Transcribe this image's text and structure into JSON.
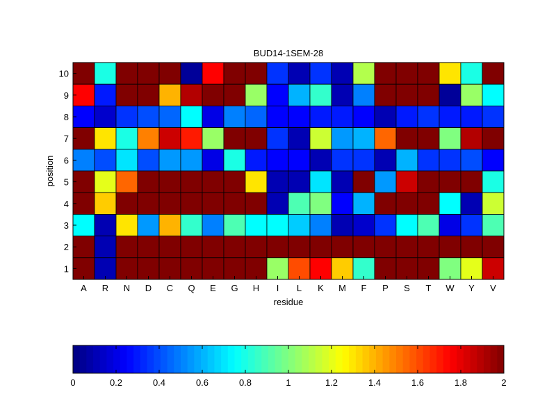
{
  "chart_data": {
    "type": "heatmap",
    "title": "BUD14-1SEM-28",
    "xlabel": "residue",
    "ylabel": "position",
    "x_categories": [
      "A",
      "R",
      "N",
      "D",
      "C",
      "Q",
      "E",
      "G",
      "H",
      "I",
      "L",
      "K",
      "M",
      "F",
      "P",
      "S",
      "T",
      "W",
      "Y",
      "V"
    ],
    "y_categories": [
      "10",
      "9",
      "8",
      "7",
      "6",
      "5",
      "4",
      "3",
      "2",
      "1"
    ],
    "values": [
      [
        2.0,
        0.8,
        2.0,
        2.0,
        2.0,
        0.05,
        1.75,
        2.0,
        2.0,
        0.35,
        0.1,
        0.35,
        0.1,
        1.1,
        2.0,
        2.0,
        2.0,
        1.3,
        0.8,
        2.0
      ],
      [
        1.75,
        0.3,
        2.0,
        2.0,
        1.4,
        1.9,
        2.0,
        2.0,
        1.05,
        0.25,
        0.6,
        0.85,
        0.1,
        0.5,
        2.0,
        2.0,
        2.0,
        0.05,
        1.05,
        0.75
      ],
      [
        0.25,
        0.15,
        0.35,
        0.4,
        0.45,
        0.75,
        0.2,
        0.5,
        0.45,
        0.25,
        0.25,
        0.3,
        0.3,
        0.25,
        0.1,
        0.3,
        0.35,
        0.3,
        0.3,
        0.35
      ],
      [
        2.0,
        1.3,
        0.8,
        1.5,
        1.85,
        1.7,
        1.05,
        2.0,
        2.0,
        0.35,
        0.1,
        1.15,
        0.55,
        0.6,
        1.55,
        2.0,
        2.0,
        1.0,
        1.9,
        2.0
      ],
      [
        0.5,
        0.4,
        0.7,
        0.4,
        0.55,
        0.55,
        0.2,
        0.8,
        0.3,
        0.25,
        0.25,
        0.1,
        0.35,
        0.35,
        0.1,
        0.6,
        0.35,
        0.35,
        0.4,
        0.25
      ],
      [
        2.0,
        1.2,
        1.55,
        2.0,
        2.0,
        2.0,
        2.0,
        2.0,
        1.3,
        0.1,
        0.1,
        0.7,
        0.1,
        2.0,
        0.55,
        1.85,
        2.0,
        2.0,
        2.0,
        0.8
      ],
      [
        2.0,
        1.35,
        2.0,
        2.0,
        2.0,
        2.0,
        2.0,
        2.0,
        2.0,
        0.1,
        0.9,
        1.0,
        0.25,
        0.6,
        2.0,
        2.0,
        2.0,
        0.75,
        0.1,
        1.15
      ],
      [
        0.75,
        0.1,
        1.3,
        0.55,
        1.4,
        0.85,
        0.5,
        0.9,
        0.75,
        0.75,
        0.65,
        0.5,
        0.1,
        0.15,
        0.35,
        0.75,
        0.9,
        0.2,
        0.35,
        0.9
      ],
      [
        2.0,
        0.1,
        2.0,
        2.0,
        2.0,
        2.0,
        2.0,
        2.0,
        2.0,
        2.0,
        2.0,
        2.0,
        2.0,
        2.0,
        2.0,
        2.0,
        2.0,
        2.0,
        2.0,
        2.0
      ],
      [
        2.0,
        0.1,
        2.0,
        2.0,
        2.0,
        2.0,
        2.0,
        2.0,
        2.0,
        1.05,
        1.6,
        1.75,
        1.35,
        0.85,
        2.0,
        2.0,
        2.0,
        1.0,
        1.2,
        1.85
      ]
    ],
    "colorbar": {
      "min": 0,
      "max": 2,
      "ticks": [
        "0",
        "0.2",
        "0.4",
        "0.6",
        "0.8",
        "1",
        "1.2",
        "1.4",
        "1.6",
        "1.8",
        "2"
      ],
      "colormap": "jet",
      "orientation": "horizontal",
      "placement": "below"
    },
    "grid": true
  }
}
